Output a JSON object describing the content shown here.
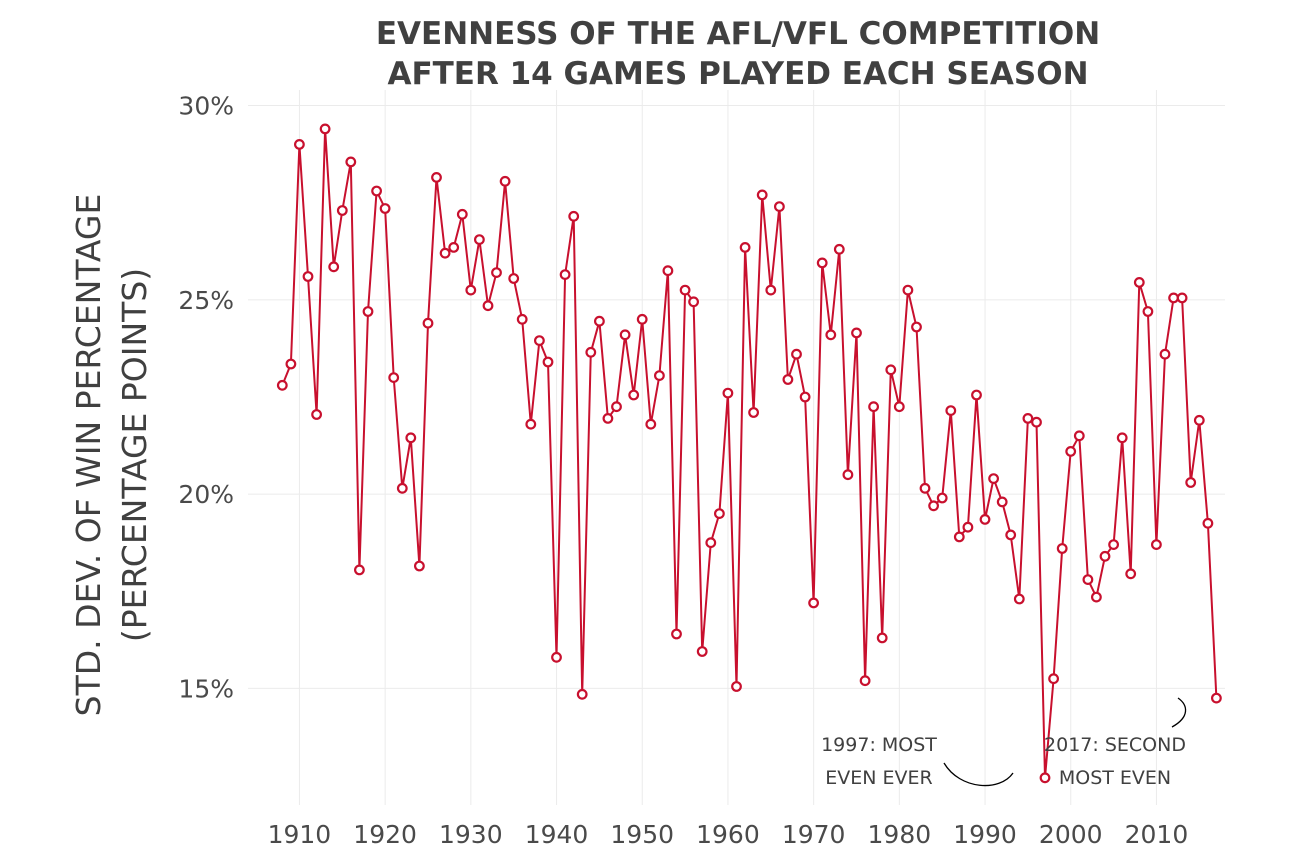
{
  "chart_data": {
    "type": "line",
    "title": "EVENNESS OF THE AFL/VFL COMPETITION",
    "subtitle": "AFTER 14 GAMES PLAYED EACH SEASON",
    "ylabel_line1": "STD. DEV. OF WIN PERCENTAGE",
    "ylabel_line2": "(PERCENTAGE POINTS)",
    "xlabel": "",
    "xlim": [
      1904,
      2018
    ],
    "ylim": [
      12,
      30.4
    ],
    "x_ticks": [
      1910,
      1920,
      1930,
      1940,
      1950,
      1960,
      1970,
      1980,
      1990,
      2000,
      2010
    ],
    "x_tick_labels": [
      "1910",
      "1920",
      "1930",
      "1940",
      "1950",
      "1960",
      "1970",
      "1980",
      "1990",
      "2000",
      "2010"
    ],
    "y_ticks": [
      15,
      20,
      25,
      30
    ],
    "y_tick_labels": [
      "15%",
      "20%",
      "25%",
      "30%"
    ],
    "grid": true,
    "line_color": "#c8102e",
    "x": [
      1908,
      1909,
      1910,
      1911,
      1912,
      1913,
      1914,
      1915,
      1916,
      1917,
      1918,
      1919,
      1920,
      1921,
      1922,
      1923,
      1924,
      1925,
      1926,
      1927,
      1928,
      1929,
      1930,
      1931,
      1932,
      1933,
      1934,
      1935,
      1936,
      1937,
      1938,
      1939,
      1940,
      1941,
      1942,
      1943,
      1944,
      1945,
      1946,
      1947,
      1948,
      1949,
      1950,
      1951,
      1952,
      1953,
      1954,
      1955,
      1956,
      1957,
      1958,
      1959,
      1960,
      1961,
      1962,
      1963,
      1964,
      1965,
      1966,
      1967,
      1968,
      1969,
      1970,
      1971,
      1972,
      1973,
      1974,
      1975,
      1976,
      1977,
      1978,
      1979,
      1980,
      1981,
      1982,
      1983,
      1984,
      1985,
      1986,
      1987,
      1988,
      1989,
      1990,
      1991,
      1992,
      1993,
      1994,
      1995,
      1996,
      1997,
      1998,
      1999,
      2000,
      2001,
      2002,
      2003,
      2004,
      2005,
      2006,
      2007,
      2008,
      2009,
      2010,
      2011,
      2012,
      2013,
      2014,
      2015,
      2016,
      2017
    ],
    "series": [
      {
        "values": [
          22.8,
          23.35,
          29.0,
          25.6,
          22.05,
          29.4,
          25.85,
          27.3,
          28.55,
          18.05,
          24.7,
          27.8,
          27.35,
          23.0,
          20.15,
          21.45,
          18.15,
          24.4,
          28.15,
          26.2,
          26.35,
          27.2,
          25.25,
          26.55,
          24.85,
          25.7,
          28.05,
          25.55,
          24.5,
          21.8,
          23.95,
          23.4,
          15.8,
          25.65,
          27.15,
          14.85,
          23.65,
          24.45,
          21.95,
          22.25,
          24.1,
          22.55,
          24.5,
          21.8,
          23.05,
          25.75,
          16.4,
          25.25,
          24.95,
          15.95,
          18.75,
          19.5,
          22.6,
          15.05,
          26.35,
          22.1,
          27.7,
          25.25,
          27.4,
          22.95,
          23.6,
          22.5,
          17.2,
          25.95,
          24.1,
          26.3,
          20.5,
          24.15,
          15.2,
          22.25,
          16.3,
          23.2,
          22.25,
          25.25,
          24.3,
          20.15,
          19.7,
          19.9,
          22.15,
          18.9,
          19.15,
          22.55,
          19.35,
          20.4,
          19.8,
          18.95,
          17.3,
          21.95,
          21.85,
          12.7,
          15.25,
          18.6,
          21.1,
          21.5,
          17.8,
          17.35,
          18.4,
          18.7,
          21.45,
          17.95,
          25.45,
          24.7,
          18.7,
          23.6,
          25.05,
          25.05,
          20.3,
          21.9,
          19.25,
          14.75
        ]
      }
    ],
    "annotations": [
      {
        "year": 1997,
        "line1": "1997: MOST",
        "line2": "EVEN EVER"
      },
      {
        "year": 2017,
        "line1": "2017: SECOND",
        "line2": "MOST EVEN"
      }
    ]
  }
}
